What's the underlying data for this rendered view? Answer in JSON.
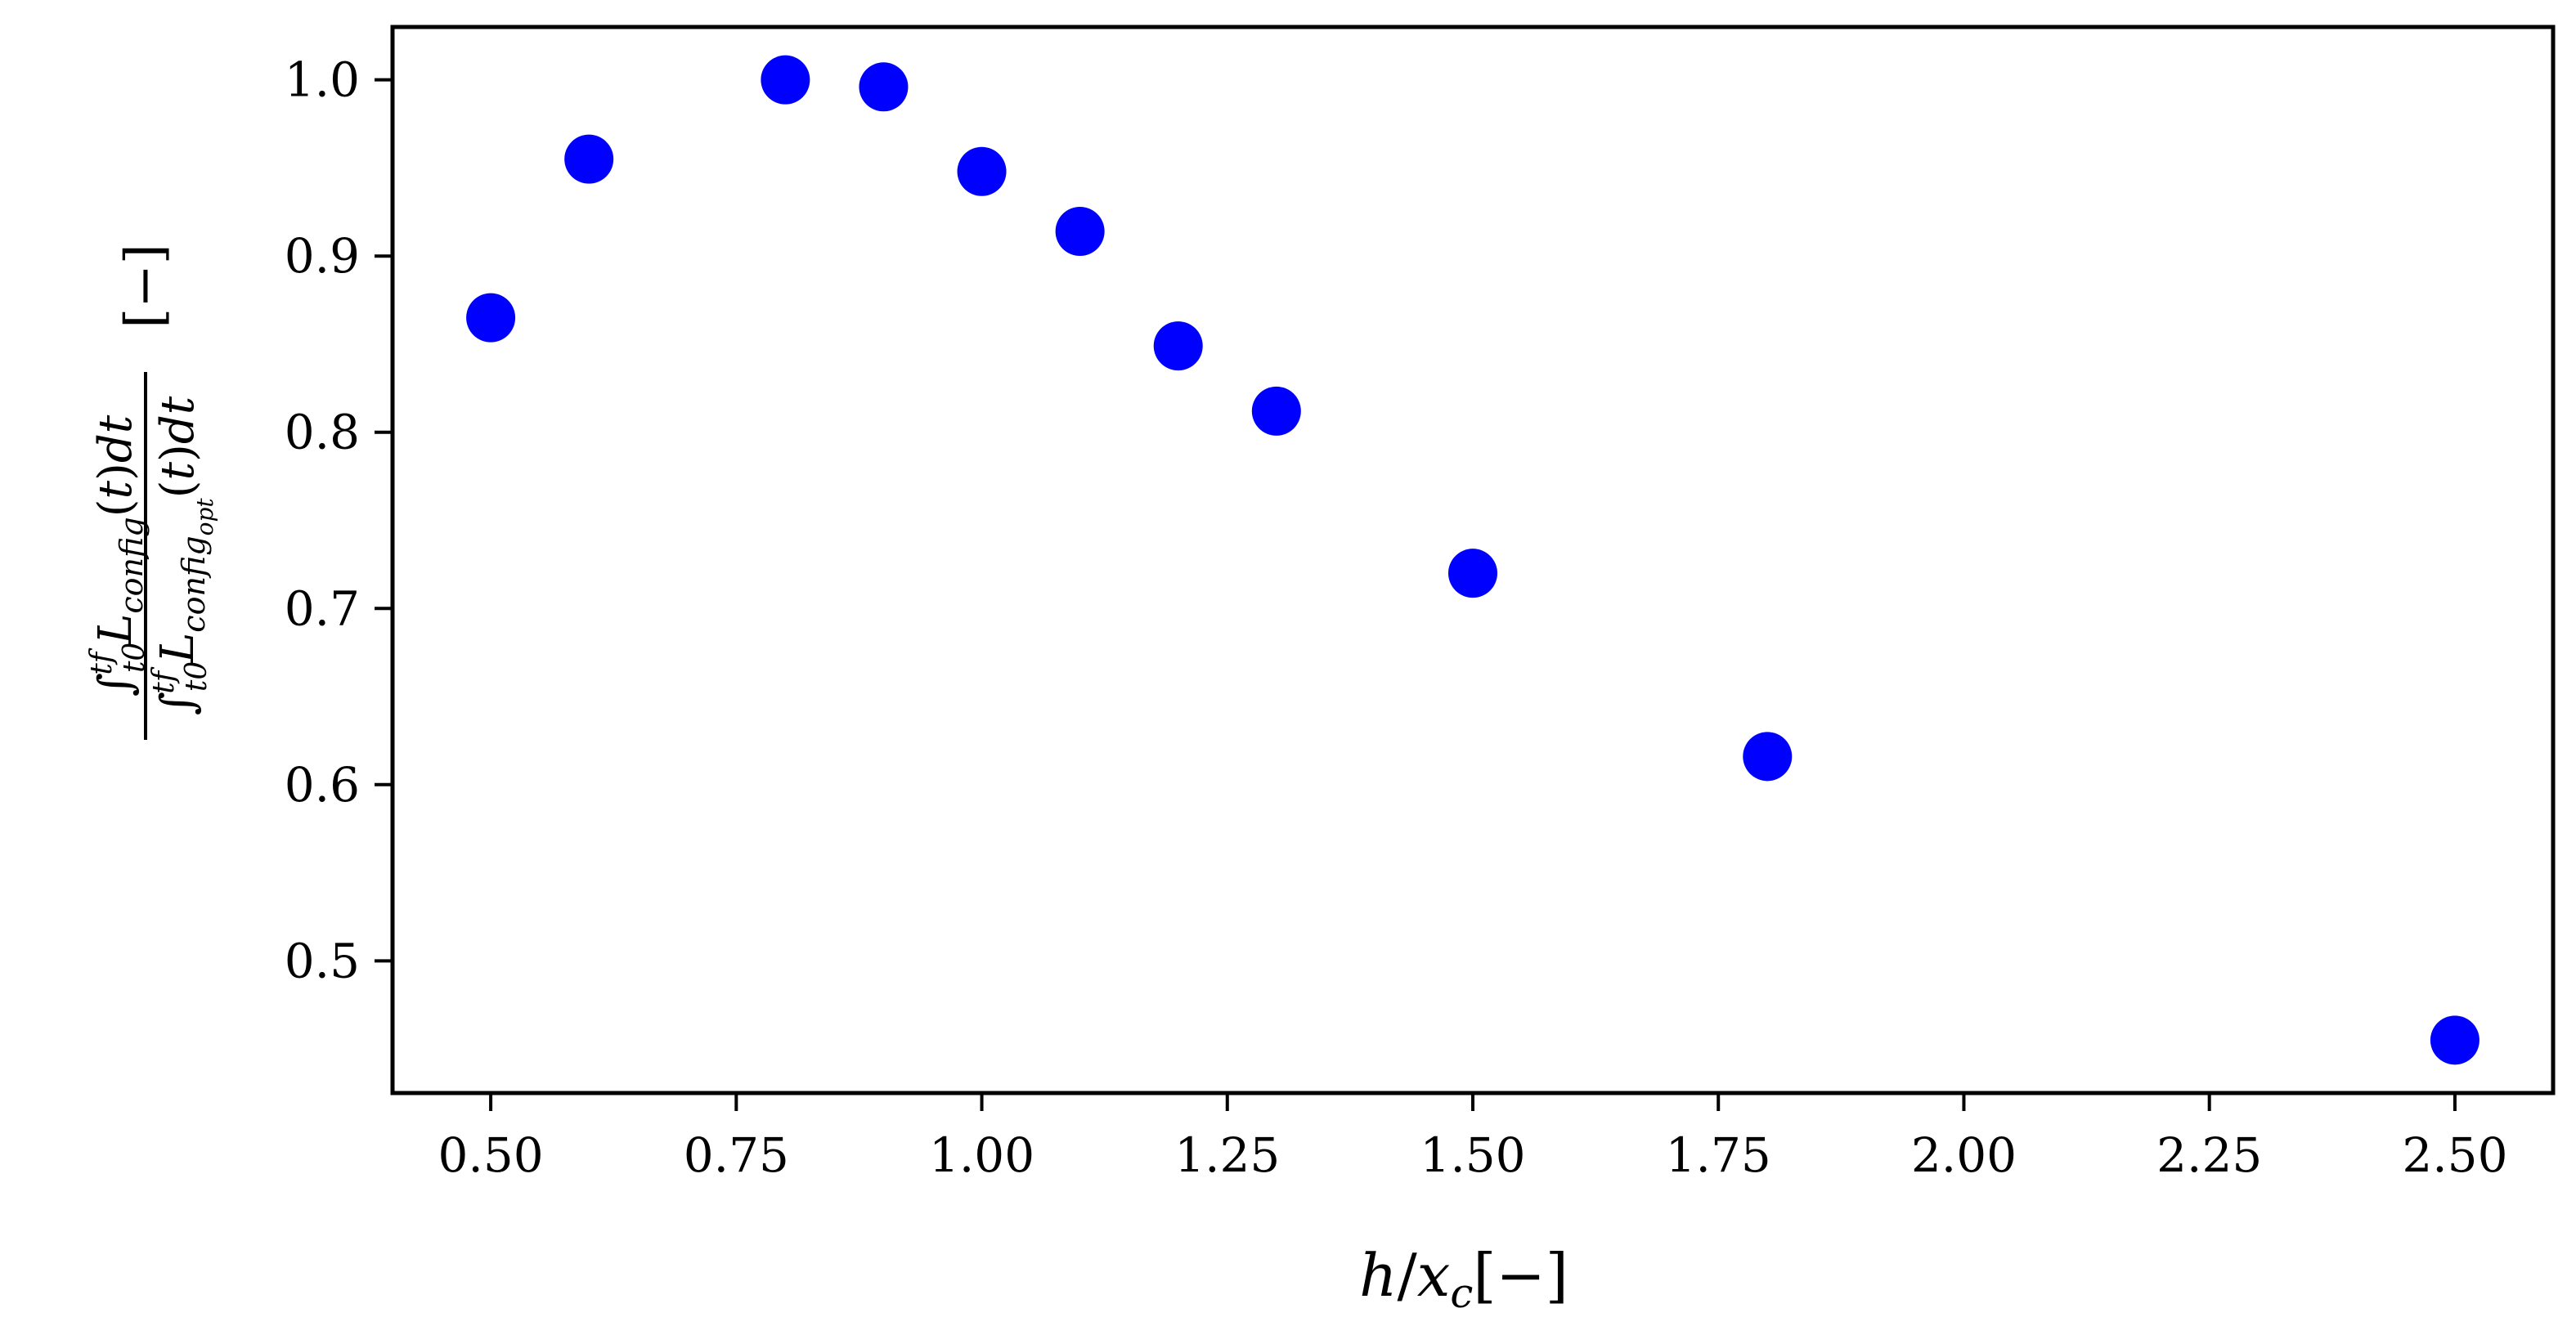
{
  "chart_data": {
    "type": "scatter",
    "title": "",
    "xlabel": "h/x_c[−]",
    "ylabel": "∫_{t0}^{tf} L_config(t)dt / ∫_{t0}^{tf} L_config_opt(t)dt [−]",
    "xlim": [
      0.4,
      2.6
    ],
    "ylim": [
      0.425,
      1.03
    ],
    "grid": false,
    "legend": "none",
    "marker_color": "#0000ff",
    "x_ticks": [
      "0.50",
      "0.75",
      "1.00",
      "1.25",
      "1.50",
      "1.75",
      "2.00",
      "2.25",
      "2.50"
    ],
    "y_ticks": [
      "0.5",
      "0.6",
      "0.7",
      "0.8",
      "0.9",
      "1.0"
    ],
    "x_tick_values": [
      0.5,
      0.75,
      1.0,
      1.25,
      1.5,
      1.75,
      2.0,
      2.25,
      2.5
    ],
    "y_tick_values": [
      0.5,
      0.6,
      0.7,
      0.8,
      0.9,
      1.0
    ],
    "points": [
      {
        "x": 0.5,
        "y": 0.865
      },
      {
        "x": 0.6,
        "y": 0.955
      },
      {
        "x": 0.8,
        "y": 1.0
      },
      {
        "x": 0.9,
        "y": 0.996
      },
      {
        "x": 1.0,
        "y": 0.948
      },
      {
        "x": 1.1,
        "y": 0.914
      },
      {
        "x": 1.2,
        "y": 0.849
      },
      {
        "x": 1.3,
        "y": 0.812
      },
      {
        "x": 1.5,
        "y": 0.72
      },
      {
        "x": 1.8,
        "y": 0.616
      },
      {
        "x": 2.5,
        "y": 0.455
      }
    ]
  }
}
